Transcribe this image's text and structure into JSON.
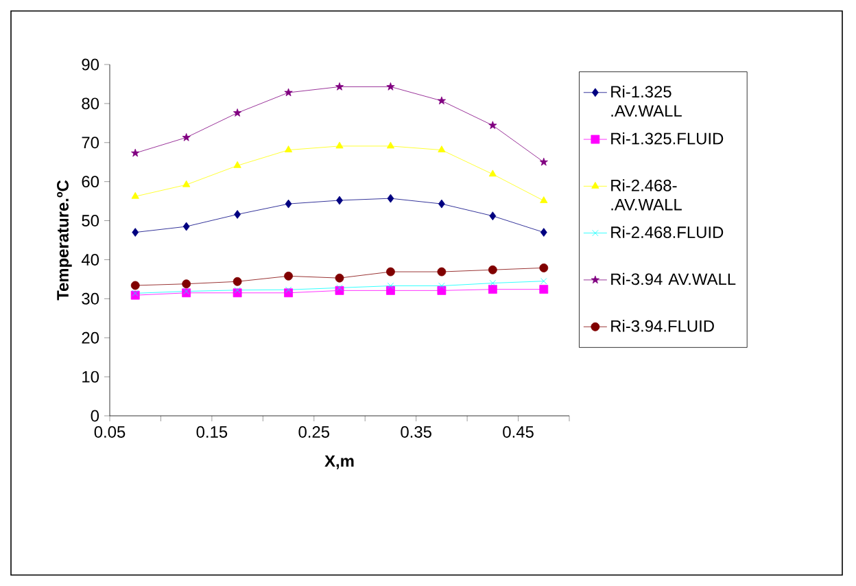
{
  "chart_data": {
    "type": "line",
    "xlabel": "X,m",
    "ylabel": "Temperature.ºC",
    "x": [
      0.075,
      0.125,
      0.175,
      0.225,
      0.275,
      0.325,
      0.375,
      0.425,
      0.475
    ],
    "series": [
      {
        "name": "Ri-1.325 .AV.WALL",
        "color": "#000080",
        "marker": "diamond",
        "values": [
          47,
          48.5,
          51.6,
          54.3,
          55.2,
          55.7,
          54.3,
          51.2,
          47
        ]
      },
      {
        "name": "Ri-1.325.FLUID",
        "color": "#ff00ff",
        "marker": "square",
        "values": [
          30.9,
          31.5,
          31.5,
          31.5,
          32.1,
          32.1,
          32.1,
          32.4,
          32.4
        ]
      },
      {
        "name": "Ri-2.468- .AV.WALL",
        "color": "#ffff00",
        "marker": "triangle",
        "values": [
          56.2,
          59.2,
          64.1,
          68.1,
          69.1,
          69.1,
          68.1,
          61.9,
          55.1
        ]
      },
      {
        "name": "Ri-2.468.FLUID",
        "color": "#00ffff",
        "marker": "cross",
        "values": [
          31.4,
          31.9,
          32.2,
          32.3,
          32.8,
          33.3,
          33.3,
          34,
          34.5
        ]
      },
      {
        "name": "Ri-3.94 AV.WALL",
        "color": "#800080",
        "marker": "star",
        "values": [
          67.3,
          71.3,
          77.6,
          82.8,
          84.3,
          84.3,
          80.7,
          74.4,
          65
        ]
      },
      {
        "name": "Ri-3.94.FLUID",
        "color": "#800000",
        "marker": "circle",
        "values": [
          33.4,
          33.8,
          34.4,
          35.8,
          35.3,
          36.9,
          36.9,
          37.4,
          37.9
        ]
      }
    ],
    "xlim": [
      0.05,
      0.5
    ],
    "xticks": [
      0.05,
      {
        "value": 0.1,
        "label": null
      },
      0.15,
      {
        "value": 0.2,
        "label": null
      },
      0.25,
      {
        "value": 0.3,
        "label": null
      },
      0.35,
      {
        "value": 0.4,
        "label": null
      },
      0.45,
      {
        "value": 0.5,
        "label": null
      }
    ],
    "ylim": [
      0,
      90
    ],
    "yticks": [
      0,
      10,
      20,
      30,
      40,
      50,
      60,
      70,
      80,
      90
    ],
    "grid": false,
    "legend": "right",
    "line_style": "solid"
  }
}
